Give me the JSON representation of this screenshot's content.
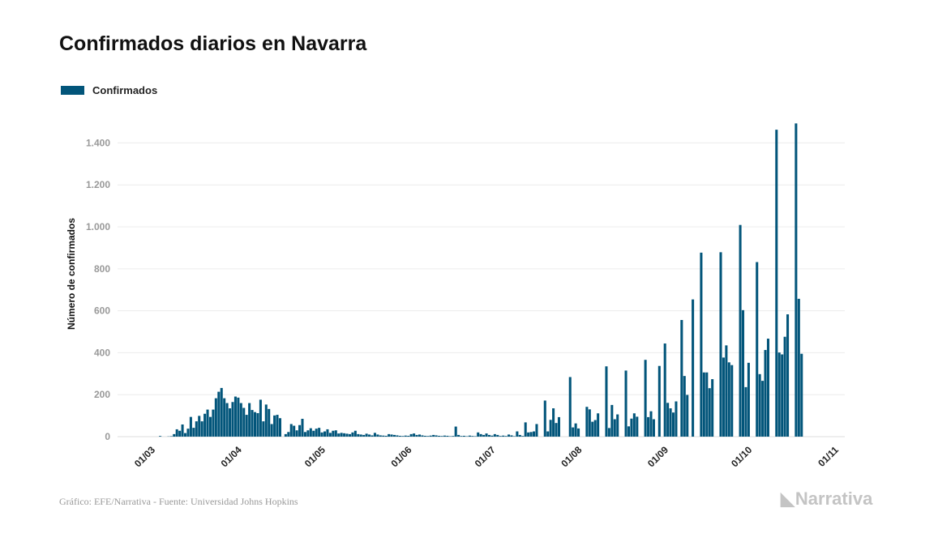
{
  "chart_data": {
    "type": "bar",
    "title": "Confirmados diarios en Navarra",
    "ylabel": "Número de confirmados",
    "xlabel": "",
    "series": [
      {
        "name": "Confirmados"
      }
    ],
    "x_range": [
      "01/03",
      "21/10"
    ],
    "x_frequency": "daily",
    "x_ticks": [
      "01/03",
      "01/04",
      "01/05",
      "01/06",
      "01/07",
      "01/08",
      "01/09",
      "01/10",
      "01/11"
    ],
    "y_ticks": [
      0,
      200,
      400,
      600,
      800,
      1000,
      1200,
      1400
    ],
    "y_tick_labels": [
      "0",
      "200",
      "400",
      "600",
      "800",
      "1.000",
      "1.200",
      "1.400"
    ],
    "ylim": [
      0,
      1560
    ],
    "grid": "horizontal",
    "legend": "top-left",
    "bar_color": "#02557a",
    "values": [
      0,
      0,
      0,
      0,
      3,
      0,
      0,
      1,
      2,
      12,
      35,
      28,
      58,
      17,
      38,
      94,
      42,
      73,
      99,
      73,
      109,
      129,
      94,
      129,
      183,
      214,
      232,
      183,
      160,
      135,
      165,
      191,
      186,
      160,
      137,
      104,
      160,
      127,
      117,
      112,
      176,
      73,
      153,
      132,
      60,
      101,
      104,
      88,
      0,
      12,
      22,
      60,
      52,
      30,
      55,
      85,
      22,
      30,
      40,
      28,
      38,
      42,
      20,
      25,
      35,
      18,
      28,
      30,
      15,
      18,
      16,
      14,
      12,
      20,
      28,
      12,
      10,
      8,
      14,
      10,
      6,
      18,
      10,
      6,
      5,
      4,
      12,
      10,
      8,
      6,
      4,
      3,
      5,
      4,
      12,
      15,
      8,
      10,
      6,
      4,
      3,
      5,
      8,
      6,
      4,
      3,
      5,
      4,
      2,
      3,
      48,
      8,
      3,
      4,
      2,
      5,
      3,
      2,
      20,
      12,
      8,
      15,
      8,
      5,
      12,
      8,
      3,
      5,
      3,
      10,
      6,
      2,
      25,
      8,
      3,
      68,
      20,
      22,
      25,
      60,
      0,
      0,
      172,
      25,
      80,
      135,
      65,
      93,
      0,
      0,
      0,
      284,
      44,
      63,
      39,
      0,
      0,
      142,
      130,
      71,
      79,
      111,
      0,
      0,
      335,
      41,
      151,
      83,
      106,
      0,
      0,
      315,
      49,
      86,
      111,
      95,
      0,
      0,
      366,
      93,
      121,
      83,
      0,
      337,
      0,
      444,
      161,
      135,
      115,
      168,
      0,
      556,
      289,
      199,
      0,
      654,
      0,
      0,
      877,
      306,
      306,
      231,
      274,
      0,
      0,
      879,
      377,
      435,
      354,
      341,
      0,
      0,
      1009,
      603,
      236,
      352,
      0,
      0,
      832,
      298,
      266,
      413,
      467,
      0,
      0,
      1463,
      401,
      392,
      476,
      583,
      0,
      0,
      1493,
      657,
      395
    ]
  },
  "legend_label": "Confirmados",
  "footer": {
    "source": "Gráfico: EFE/Narrativa - Fuente: Universidad Johns Hopkins",
    "logo": "Narrativa"
  }
}
